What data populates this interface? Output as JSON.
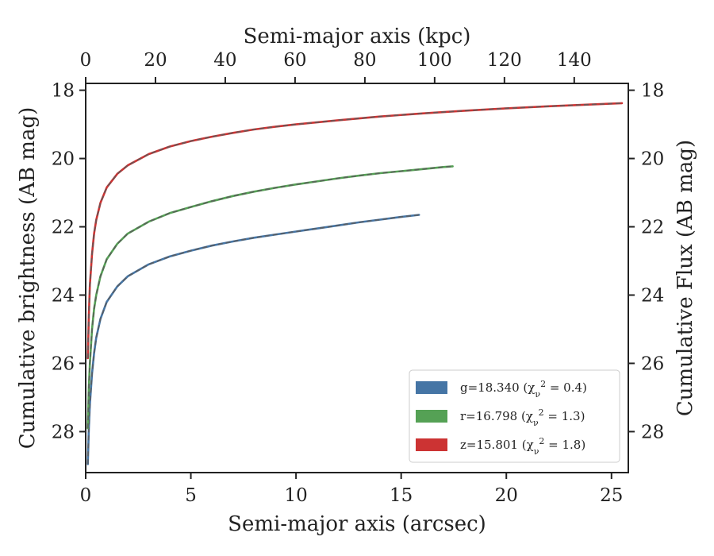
{
  "chart_data": {
    "type": "line",
    "xlabel": "Semi-major axis (arcsec)",
    "ylabel": "Cumulative brightness (AB mag)",
    "top_xlabel": "Semi-major axis (kpc)",
    "right_ylabel": "Cumulative Flux (AB mag)",
    "xlim": [
      0,
      25.8
    ],
    "ylim": [
      29.2,
      17.8
    ],
    "y_inverted": true,
    "top_xlim": [
      0,
      155.5
    ],
    "x_ticks": [
      0,
      5,
      10,
      15,
      20,
      25
    ],
    "y_ticks": [
      18,
      20,
      22,
      24,
      26,
      28
    ],
    "top_x_ticks": [
      0,
      20,
      40,
      60,
      80,
      100,
      120,
      140
    ],
    "grid": false,
    "legend_position": "lower-right",
    "series": [
      {
        "name": "g=18.340",
        "chi": "0.4",
        "color": "#4575a5",
        "x": [
          0.1,
          0.15,
          0.2,
          0.3,
          0.4,
          0.5,
          0.7,
          1.0,
          1.5,
          2.0,
          3.0,
          4.0,
          5.0,
          6.0,
          7.0,
          8.0,
          9.0,
          10.0,
          11.0,
          12.0,
          13.0,
          14.0,
          15.0,
          15.85
        ],
        "y": [
          28.95,
          27.9,
          27.2,
          26.3,
          25.7,
          25.25,
          24.7,
          24.2,
          23.75,
          23.45,
          23.1,
          22.87,
          22.7,
          22.55,
          22.43,
          22.32,
          22.23,
          22.14,
          22.05,
          21.96,
          21.87,
          21.79,
          21.71,
          21.65
        ]
      },
      {
        "name": "r=16.798",
        "chi": "1.3",
        "color": "#55a155",
        "x": [
          0.1,
          0.15,
          0.2,
          0.3,
          0.4,
          0.5,
          0.7,
          1.0,
          1.5,
          2.0,
          3.0,
          4.0,
          5.0,
          6.0,
          7.0,
          8.0,
          9.0,
          10.0,
          11.0,
          12.0,
          13.0,
          14.0,
          15.0,
          16.0,
          17.0,
          17.45
        ],
        "y": [
          27.9,
          26.7,
          26.0,
          25.0,
          24.4,
          24.0,
          23.45,
          22.95,
          22.5,
          22.2,
          21.85,
          21.6,
          21.42,
          21.25,
          21.1,
          20.97,
          20.86,
          20.76,
          20.67,
          20.58,
          20.5,
          20.43,
          20.37,
          20.31,
          20.25,
          20.23
        ]
      },
      {
        "name": "z=15.801",
        "chi": "1.8",
        "color": "#cc3333",
        "x": [
          0.1,
          0.15,
          0.2,
          0.3,
          0.4,
          0.5,
          0.7,
          1.0,
          1.5,
          2.0,
          3.0,
          4.0,
          5.0,
          6.0,
          7.0,
          8.0,
          9.0,
          10.0,
          12.0,
          14.0,
          16.0,
          18.0,
          20.0,
          22.0,
          24.0,
          25.5
        ],
        "y": [
          25.85,
          24.6,
          23.7,
          22.8,
          22.2,
          21.8,
          21.3,
          20.85,
          20.45,
          20.2,
          19.87,
          19.65,
          19.49,
          19.36,
          19.25,
          19.15,
          19.07,
          19.0,
          18.88,
          18.77,
          18.68,
          18.6,
          18.53,
          18.47,
          18.42,
          18.38
        ]
      }
    ]
  }
}
